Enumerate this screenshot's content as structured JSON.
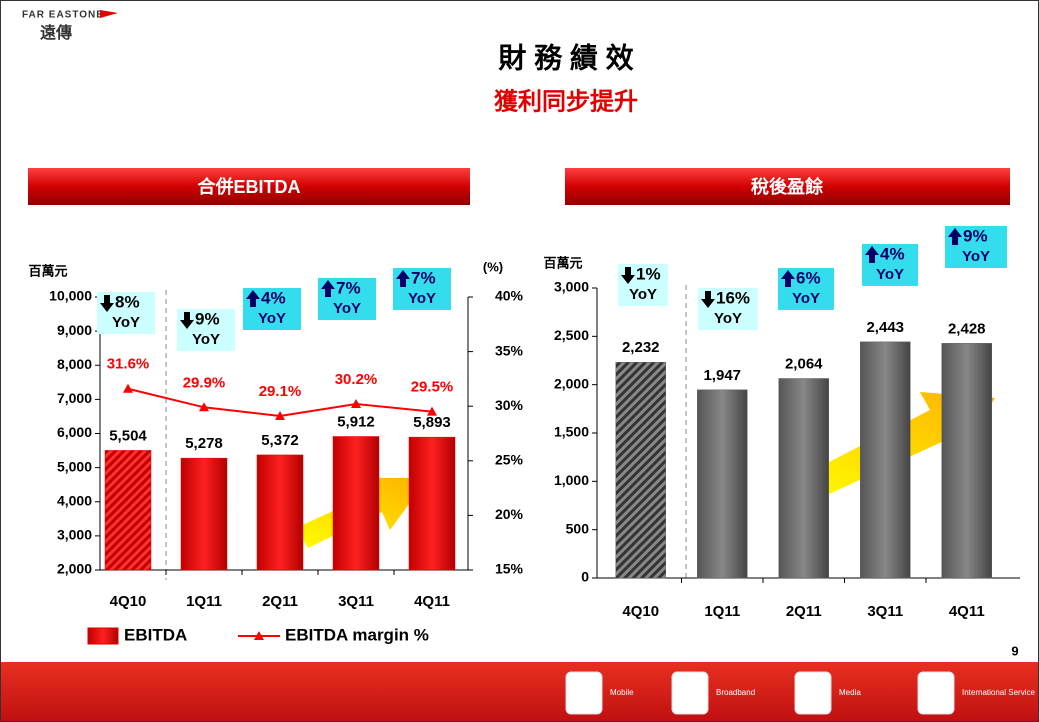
{
  "header": {
    "logo_en": "FAR EASTONE",
    "logo_zh": "遠傳",
    "title": "財 務 績 效",
    "subtitle": "獲利同步提升"
  },
  "page_number": "9",
  "footer": {
    "items": [
      "Mobile",
      "Broadband",
      "Media",
      "International Service"
    ]
  },
  "chart_data": [
    {
      "type": "bar",
      "title": "合併EBITDA",
      "ylabel": "百萬元",
      "y2label": "(%)",
      "categories": [
        "4Q10",
        "1Q11",
        "2Q11",
        "3Q11",
        "4Q11"
      ],
      "series": [
        {
          "name": "EBITDA",
          "type": "bar",
          "color": "#e00000",
          "values": [
            5504,
            5278,
            5372,
            5912,
            5893
          ],
          "value_labels": [
            "5,504",
            "5,278",
            "5,372",
            "5,912",
            "5,893"
          ]
        },
        {
          "name": "EBITDA margin %",
          "type": "line",
          "axis": "y2",
          "color": "#ff0000",
          "values": [
            31.6,
            29.9,
            29.1,
            30.2,
            29.5
          ],
          "value_labels": [
            "31.6%",
            "29.9%",
            "29.1%",
            "30.2%",
            "29.5%"
          ]
        }
      ],
      "hatched": [
        0
      ],
      "ylim": [
        2000,
        10000
      ],
      "yticks": [
        {
          "value": 2000,
          "label": "2,000"
        },
        {
          "value": 3000,
          "label": "3,000"
        },
        {
          "value": 4000,
          "label": "4,000"
        },
        {
          "value": 5000,
          "label": "5,000"
        },
        {
          "value": 6000,
          "label": "6,000"
        },
        {
          "value": 7000,
          "label": "7,000"
        },
        {
          "value": 8000,
          "label": "8,000"
        },
        {
          "value": 9000,
          "label": "9,000"
        },
        {
          "value": 10000,
          "label": "10,000"
        }
      ],
      "y2lim": [
        15,
        40
      ],
      "y2ticks": [
        {
          "value": 15,
          "label": "15%"
        },
        {
          "value": 20,
          "label": "20%"
        },
        {
          "value": 25,
          "label": "25%"
        },
        {
          "value": 30,
          "label": "30%"
        },
        {
          "value": 35,
          "label": "35%"
        },
        {
          "value": 40,
          "label": "40%"
        }
      ],
      "annotations": [
        {
          "trend": "down",
          "text": "8%",
          "period": "YoY"
        },
        {
          "trend": "down",
          "text": "9%",
          "period": "YoY"
        },
        {
          "trend": "up",
          "text": "4%",
          "period": "YoY"
        },
        {
          "trend": "up",
          "text": "7%",
          "period": "YoY"
        },
        {
          "trend": "up",
          "text": "7%",
          "period": "YoY"
        }
      ],
      "legend": "bottom-left"
    },
    {
      "type": "bar",
      "title": "稅後盈餘",
      "ylabel": "百萬元",
      "categories": [
        "4Q10",
        "1Q11",
        "2Q11",
        "3Q11",
        "4Q11"
      ],
      "values": [
        2232,
        1947,
        2064,
        2443,
        2428
      ],
      "value_labels": [
        "2,232",
        "1,947",
        "2,064",
        "2,443",
        "2,428"
      ],
      "color": "#666666",
      "hatched": [
        0
      ],
      "ylim": [
        0,
        3000
      ],
      "yticks": [
        0,
        500,
        {
          "value": 1000,
          "label": "1,000"
        },
        {
          "value": 1500,
          "label": "1,500"
        },
        {
          "value": 2000,
          "label": "2,000"
        },
        {
          "value": 2500,
          "label": "2,500"
        },
        {
          "value": 3000,
          "label": "3,000"
        }
      ],
      "annotations": [
        {
          "trend": "down",
          "text": "1%",
          "period": "YoY"
        },
        {
          "trend": "down",
          "text": "16%",
          "period": "YoY"
        },
        {
          "trend": "up",
          "text": "6%",
          "period": "YoY"
        },
        {
          "trend": "up",
          "text": "4%",
          "period": "YoY"
        },
        {
          "trend": "up",
          "text": "9%",
          "period": "YoY"
        }
      ]
    }
  ]
}
